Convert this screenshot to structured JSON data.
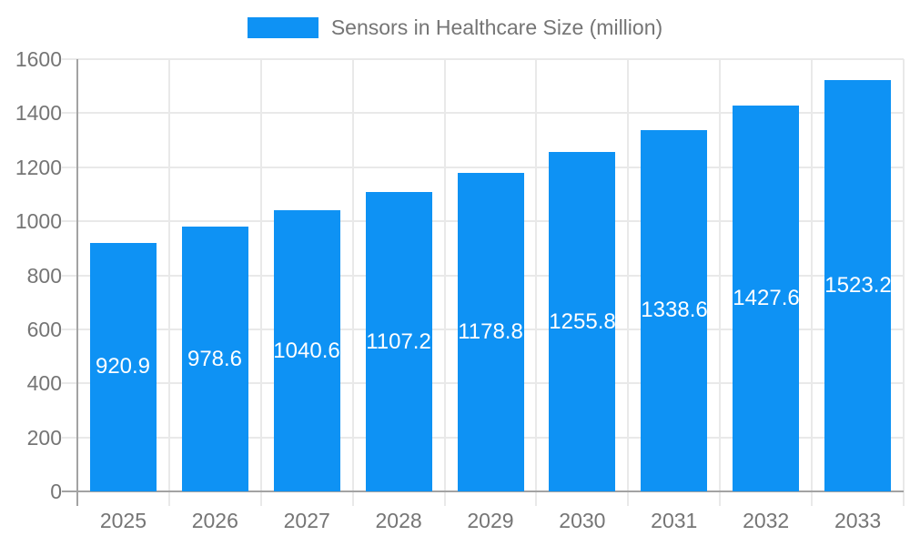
{
  "chart_data": {
    "type": "bar",
    "title": "Sensors in Healthcare Size (million)",
    "legend_position": "top",
    "categories": [
      "2025",
      "2026",
      "2027",
      "2028",
      "2029",
      "2030",
      "2031",
      "2032",
      "2033"
    ],
    "series": [
      {
        "name": "Sensors in Healthcare Size (million)",
        "values": [
          920.9,
          978.6,
          1040.6,
          1107.2,
          1178.8,
          1255.8,
          1338.6,
          1427.6,
          1523.2
        ]
      }
    ],
    "value_labels": [
      "920.9",
      "978.6",
      "1040.6",
      "1107.2",
      "1178.8",
      "1255.8",
      "1338.6",
      "1427.6",
      "1523.2"
    ],
    "xlabel": "",
    "ylabel": "",
    "ylim": [
      0,
      1600
    ],
    "yticks": [
      0,
      200,
      400,
      600,
      800,
      1000,
      1200,
      1400,
      1600
    ],
    "grid": true,
    "colors": {
      "bar": "#0E92F4",
      "bar_label_text": "#FFFFFF",
      "axis_text": "#757575",
      "gridline": "#E9E9E9",
      "axis_line": "#A3A3A3",
      "background": "#FFFFFF"
    }
  }
}
